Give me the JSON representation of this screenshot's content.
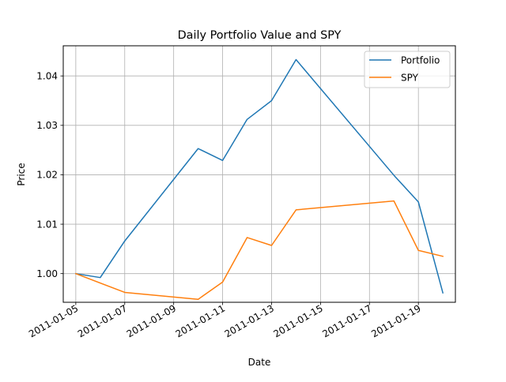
{
  "chart_data": {
    "type": "line",
    "title": "Daily Portfolio Value and SPY",
    "xlabel": "Date",
    "ylabel": "Price",
    "xlim": [
      "2011-01-04T11:42",
      "2011-01-20T12:18"
    ],
    "ylim": [
      0.9942,
      1.0461
    ],
    "grid": true,
    "legend_position": "top-right",
    "x_ticks": [
      "2011-01-05",
      "2011-01-07",
      "2011-01-09",
      "2011-01-11",
      "2011-01-13",
      "2011-01-15",
      "2011-01-17",
      "2011-01-19"
    ],
    "y_ticks": [
      1.0,
      1.01,
      1.02,
      1.03,
      1.04
    ],
    "y_tick_labels": [
      "1.00",
      "1.01",
      "1.02",
      "1.03",
      "1.04"
    ],
    "series": [
      {
        "name": "Portfolio",
        "color": "#1f77b4",
        "points": [
          [
            "2011-01-05",
            1.0
          ],
          [
            "2011-01-06",
            0.9992
          ],
          [
            "2011-01-07",
            1.0066
          ],
          [
            "2011-01-10",
            1.0253
          ],
          [
            "2011-01-11",
            1.0229
          ],
          [
            "2011-01-12",
            1.0312
          ],
          [
            "2011-01-13",
            1.035
          ],
          [
            "2011-01-14",
            1.0433
          ],
          [
            "2011-01-18",
            1.0199
          ],
          [
            "2011-01-19",
            1.0145
          ],
          [
            "2011-01-20",
            0.9961
          ]
        ]
      },
      {
        "name": "SPY",
        "color": "#ff7f0e",
        "points": [
          [
            "2011-01-05",
            1.0
          ],
          [
            "2011-01-07",
            0.9962
          ],
          [
            "2011-01-10",
            0.9948
          ],
          [
            "2011-01-11",
            0.9983
          ],
          [
            "2011-01-12",
            1.0073
          ],
          [
            "2011-01-13",
            1.0057
          ],
          [
            "2011-01-14",
            1.0129
          ],
          [
            "2011-01-18",
            1.0147
          ],
          [
            "2011-01-19",
            1.0047
          ],
          [
            "2011-01-20",
            1.0035
          ]
        ]
      }
    ]
  }
}
